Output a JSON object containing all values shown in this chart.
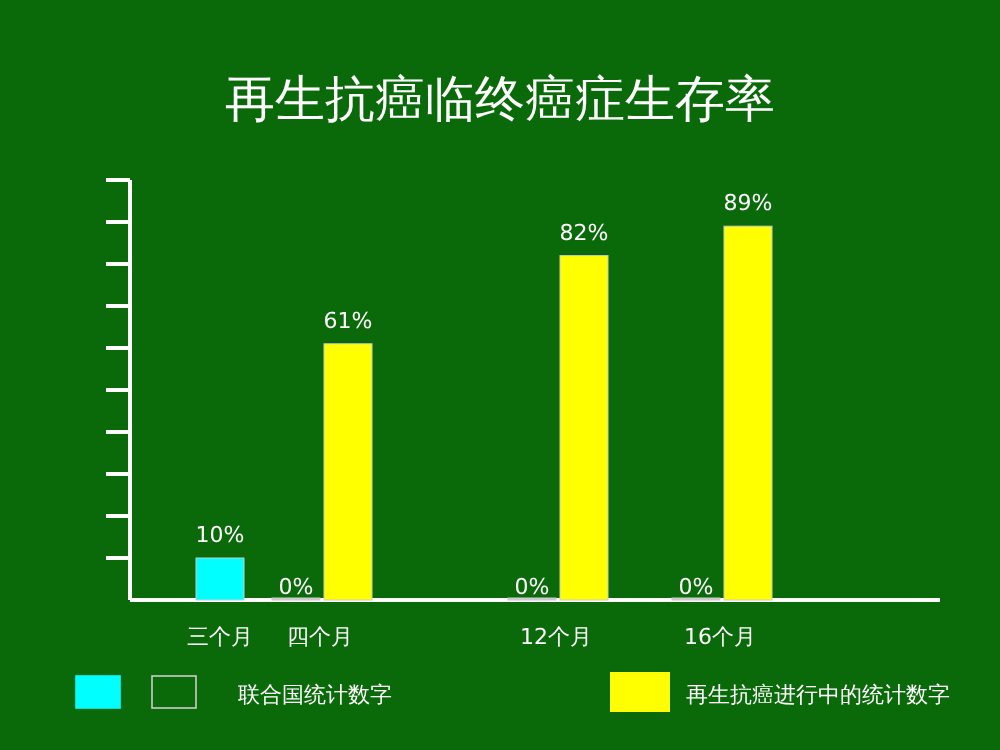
{
  "chart_data": {
    "type": "bar",
    "title": "再生抗癌临终癌症生存率",
    "categories": [
      "三个月",
      "四个月",
      "12个月",
      "16个月"
    ],
    "series": [
      {
        "name": "联合国统计数字",
        "colors": [
          "#00ffff",
          "#cccccc",
          "#cccccc",
          "#cccccc"
        ],
        "values": [
          10,
          0,
          0,
          0
        ],
        "value_labels": [
          "10%",
          "0%",
          "0%",
          "0%"
        ]
      },
      {
        "name": "再生抗癌进行中的统计数字",
        "color": "#ffff00",
        "values": [
          null,
          61,
          82,
          89
        ],
        "value_labels": [
          null,
          "61%",
          "82%",
          "89%"
        ]
      }
    ],
    "ylim": [
      0,
      100
    ],
    "yticks": [
      {
        "value": 10,
        "label": null
      },
      {
        "value": 20,
        "label": null
      },
      {
        "value": 30,
        "label": null
      },
      {
        "value": 40,
        "label": null
      },
      {
        "value": 50,
        "label": null
      },
      {
        "value": 60,
        "label": null
      },
      {
        "value": 70,
        "label": null
      },
      {
        "value": 80,
        "label": null
      },
      {
        "value": 90,
        "label": null
      },
      {
        "value": 100,
        "label": null
      }
    ],
    "tick_labels": "x",
    "legend": "bottom"
  }
}
